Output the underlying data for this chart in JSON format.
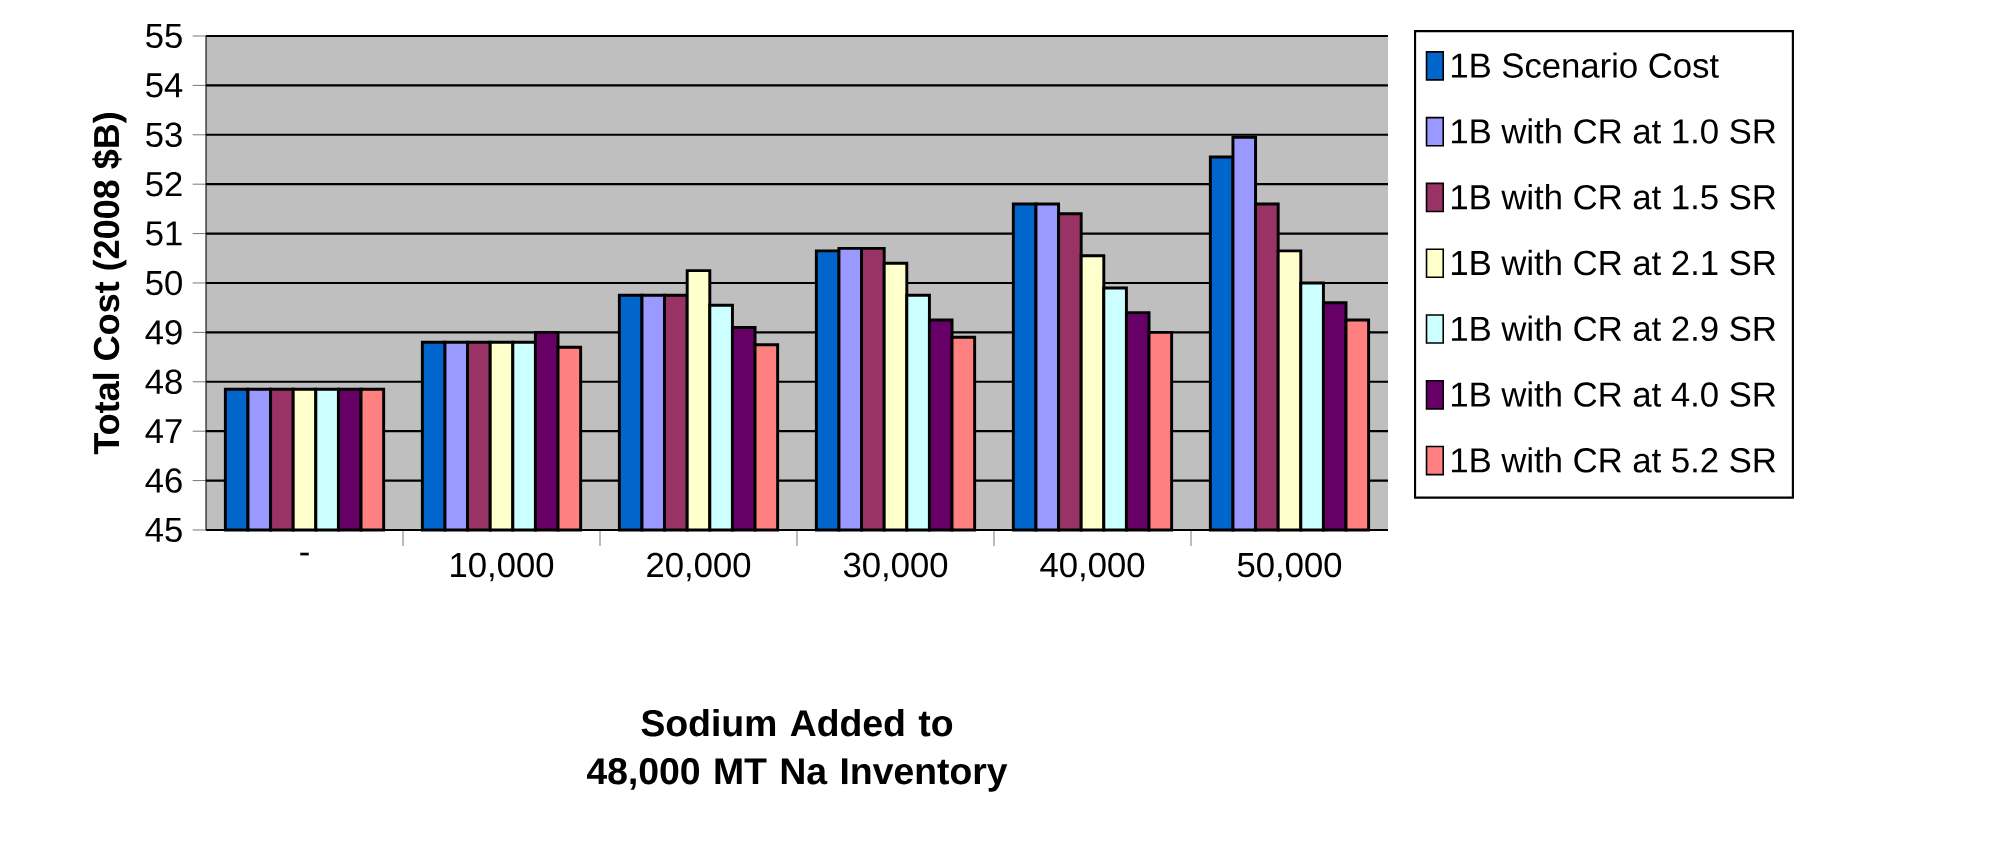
{
  "chart_data": {
    "type": "bar",
    "xlabel": "Sodium Added to 48,000 MT Na Inventory",
    "ylabel": "Total Cost (2008 $B)",
    "categories": [
      "-",
      "10,000",
      "20,000",
      "30,000",
      "40,000",
      "50,000"
    ],
    "series": [
      {
        "name": "1B Scenario Cost",
        "color": "#0066cc",
        "values": [
          47.85,
          48.8,
          49.75,
          50.65,
          51.6,
          52.55
        ]
      },
      {
        "name": "1B with CR at 1.0 SR",
        "color": "#9999ff",
        "values": [
          47.85,
          48.8,
          49.75,
          50.7,
          51.6,
          52.95
        ]
      },
      {
        "name": "1B with CR at 1.5 SR",
        "color": "#993366",
        "values": [
          47.85,
          48.8,
          49.75,
          50.7,
          51.4,
          51.6
        ]
      },
      {
        "name": "1B with CR at 2.1 SR",
        "color": "#ffffcc",
        "values": [
          47.85,
          48.8,
          50.25,
          50.4,
          50.55,
          50.65
        ]
      },
      {
        "name": "1B with CR at 2.9 SR",
        "color": "#ccffff",
        "values": [
          47.85,
          48.8,
          49.55,
          49.75,
          49.9,
          50.0
        ]
      },
      {
        "name": "1B with CR at 4.0 SR",
        "color": "#660066",
        "values": [
          47.85,
          49.0,
          49.1,
          49.25,
          49.4,
          49.6
        ]
      },
      {
        "name": "1B with CR at 5.2 SR",
        "color": "#ff8080",
        "values": [
          47.85,
          48.7,
          48.75,
          48.9,
          49.0,
          49.25
        ]
      }
    ],
    "ylim": [
      45,
      55
    ],
    "yticks": [
      45,
      46,
      47,
      48,
      49,
      50,
      51,
      52,
      53,
      54,
      55
    ],
    "grid": "y",
    "legend": "right"
  }
}
